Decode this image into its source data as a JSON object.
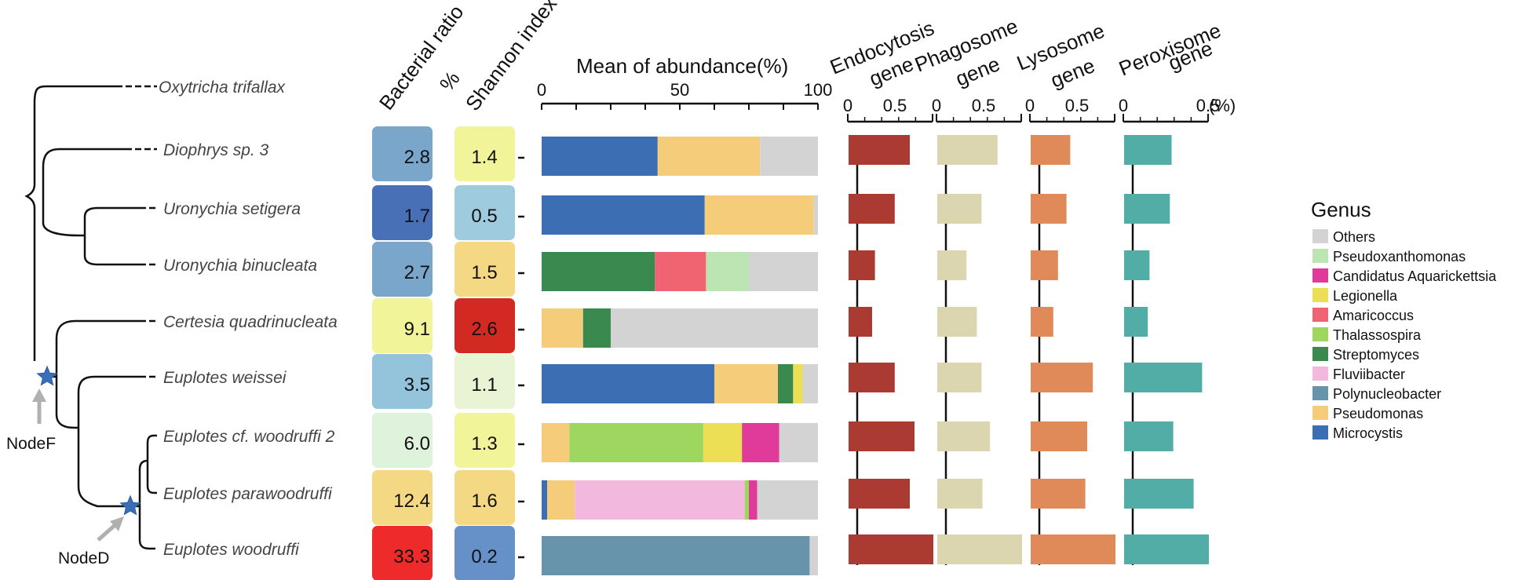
{
  "chart_data": {
    "type": "bar",
    "species": [
      "Oxytricha trifallax",
      "Diophrys sp. 3",
      "Uronychia setigera",
      "Uronychia binucleata",
      "Certesia quadrinucleata",
      "Euplotes weissei",
      "Euplotes cf. woodruffi 2",
      "Euplotes parawoodruffi",
      "Euplotes woodruffi"
    ],
    "headers": {
      "bacterial_ratio": "Bacterial ratio",
      "bacterial_ratio_unit": "%",
      "shannon": "Shannon index",
      "abundance": "Mean of abundance(%)",
      "endocytosis": [
        "Endocytosis",
        "gene"
      ],
      "phagosome": [
        "Phagosome",
        "gene"
      ],
      "lysosome": [
        "Lysosome",
        "gene"
      ],
      "peroxisome": [
        "Peroxisome",
        "gene"
      ],
      "percent_unit": "(%)"
    },
    "bacterial_ratio": [
      null,
      2.8,
      1.7,
      2.7,
      9.1,
      3.5,
      6.0,
      12.4,
      33.3
    ],
    "bacterial_ratio_labels": [
      "",
      "2.8",
      "1.7",
      "2.7",
      "9.1",
      "3.5",
      "6.0",
      "12.4",
      "33.3"
    ],
    "bacterial_ratio_colors": [
      null,
      "#7aa6cc",
      "#4870b6",
      "#7aa6cc",
      "#f2f49a",
      "#94c4dc",
      "#dff2dc",
      "#f5d884",
      "#ee2a2a"
    ],
    "shannon_index": [
      null,
      1.4,
      0.5,
      1.5,
      2.6,
      1.1,
      1.3,
      1.6,
      0.2
    ],
    "shannon_labels": [
      "",
      "1.4",
      "0.5",
      "1.5",
      "2.6",
      "1.1",
      "1.3",
      "1.6",
      "0.2"
    ],
    "shannon_colors": [
      null,
      "#f2f49a",
      "#9fcbde",
      "#f5d884",
      "#d22a22",
      "#e8f4d4",
      "#f2f49a",
      "#f5d884",
      "#6690c8"
    ],
    "abundance": {
      "xlim": [
        0,
        100
      ],
      "ticks": [
        0,
        50,
        100
      ],
      "stacks": [
        null,
        [
          [
            "Microcystis",
            42
          ],
          [
            "Pseudomonas",
            37
          ],
          [
            "Others",
            21
          ]
        ],
        [
          [
            "Microcystis",
            59
          ],
          [
            "Pseudomonas",
            39.5
          ],
          [
            "Others",
            1.5
          ]
        ],
        [
          [
            "Streptomyces",
            41
          ],
          [
            "Amaricoccus",
            18.5
          ],
          [
            "Pseudoxanthomonas",
            15.5
          ],
          [
            "Others",
            25
          ]
        ],
        [
          [
            "Pseudomonas",
            15
          ],
          [
            "Streptomyces",
            10
          ],
          [
            "Others",
            75
          ]
        ],
        [
          [
            "Microcystis",
            62.5
          ],
          [
            "Pseudomonas",
            23
          ],
          [
            "Streptomyces",
            5.5
          ],
          [
            "Legionella",
            3.5
          ],
          [
            "Others",
            5.5
          ]
        ],
        [
          [
            "Pseudomonas",
            10
          ],
          [
            "Thalassospira",
            48.5
          ],
          [
            "Legionella",
            14
          ],
          [
            "Candidatus Aquarickettsia",
            13.5
          ],
          [
            "Others",
            14
          ]
        ],
        [
          [
            "Microcystis",
            2
          ],
          [
            "Pseudomonas",
            10
          ],
          [
            "Fluviibacter",
            61.5
          ],
          [
            "Thalassospira",
            1.5
          ],
          [
            "Candidatus Aquarickettsia",
            3
          ],
          [
            "Others",
            22
          ]
        ],
        [
          [
            "Polynucleobacter",
            97
          ],
          [
            "Others",
            3
          ]
        ]
      ]
    },
    "genes": [
      {
        "key": "endocytosis",
        "xlim": [
          0,
          0.9
        ],
        "ticks": [
          0,
          0.5
        ],
        "tick_labels": [
          "0",
          "0.5"
        ],
        "color": "#aa3a32",
        "values": [
          null,
          0.65,
          0.49,
          0.28,
          0.25,
          0.49,
          0.7,
          0.65,
          0.9
        ]
      },
      {
        "key": "phagosome",
        "xlim": [
          0,
          0.9
        ],
        "ticks": [
          0,
          0.5
        ],
        "tick_labels": [
          "0",
          "0.5"
        ],
        "color": "#dbd6b0",
        "values": [
          null,
          0.64,
          0.47,
          0.31,
          0.42,
          0.47,
          0.56,
          0.48,
          0.9
        ]
      },
      {
        "key": "lysosome",
        "xlim": [
          0,
          0.9
        ],
        "ticks": [
          0,
          0.5
        ],
        "tick_labels": [
          "0",
          "0.5"
        ],
        "color": "#e08a5a",
        "values": [
          null,
          0.42,
          0.38,
          0.29,
          0.24,
          0.66,
          0.6,
          0.58,
          0.9
        ]
      },
      {
        "key": "peroxisome",
        "xlim": [
          0,
          0.5
        ],
        "ticks": [
          0,
          0.5
        ],
        "tick_labels": [
          "0",
          "0.5"
        ],
        "color": "#52ada6",
        "values": [
          null,
          0.28,
          0.27,
          0.15,
          0.14,
          0.46,
          0.29,
          0.41,
          0.5
        ]
      }
    ],
    "legend": {
      "title": "Genus",
      "placement": "right",
      "items": [
        {
          "name": "Others",
          "color": "#d3d3d3"
        },
        {
          "name": "Pseudoxanthomonas",
          "color": "#bde5b4"
        },
        {
          "name": "Candidatus Aquarickettsia",
          "color": "#e03a9a"
        },
        {
          "name": "Legionella",
          "color": "#ecdf55"
        },
        {
          "name": "Amaricoccus",
          "color": "#ef6470"
        },
        {
          "name": "Thalassospira",
          "color": "#9ed660"
        },
        {
          "name": "Streptomyces",
          "color": "#3a8a50"
        },
        {
          "name": "Fluviibacter",
          "color": "#f3b8de"
        },
        {
          "name": "Polynucleobacter",
          "color": "#6794aa"
        },
        {
          "name": "Pseudomonas",
          "color": "#f5cc7a"
        },
        {
          "name": "Microcystis",
          "color": "#3b6eb2"
        }
      ]
    },
    "tree": {
      "nodes": [
        {
          "label": "NodeF"
        },
        {
          "label": "NodeD"
        }
      ]
    }
  }
}
